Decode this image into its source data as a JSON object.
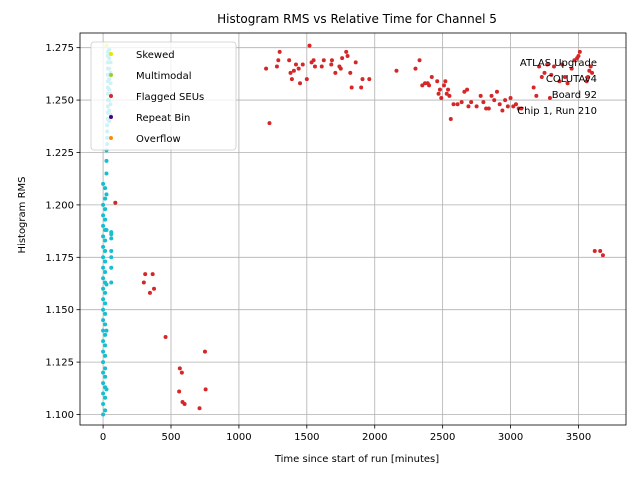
{
  "chart_data": {
    "type": "scatter",
    "title": "Histogram RMS vs Relative Time for Channel 5",
    "xlabel": "Time since start of run [minutes]",
    "ylabel": "Histogram RMS",
    "xlim": [
      -170,
      3850
    ],
    "ylim": [
      1.095,
      1.282
    ],
    "x_ticks": [
      0,
      500,
      1000,
      1500,
      2000,
      2500,
      3000,
      3500
    ],
    "y_ticks": [
      1.1,
      1.125,
      1.15,
      1.175,
      1.2,
      1.225,
      1.25,
      1.275
    ],
    "x_tick_labels": [
      "0",
      "500",
      "1000",
      "1500",
      "2000",
      "2500",
      "3000",
      "3500"
    ],
    "y_tick_labels": [
      "1.100",
      "1.125",
      "1.150",
      "1.175",
      "1.200",
      "1.225",
      "1.250",
      "1.275"
    ],
    "grid": true,
    "legend_position": "upper-left",
    "annotation": [
      "ATLAS Upgrade",
      "COLUTAv4",
      "Board 92",
      "Chip 1, Run 210"
    ],
    "legend": [
      {
        "name": "Skewed",
        "color": "#e6e600"
      },
      {
        "name": "Multimodal",
        "color": "#9acd32"
      },
      {
        "name": "Flagged SEUs",
        "color": "#d62728"
      },
      {
        "name": "Repeat Bin",
        "color": "#4b0082"
      },
      {
        "name": "Overflow",
        "color": "#ff8c00"
      }
    ],
    "series": [
      {
        "name": "Flagged SEUs",
        "color": "#d62728",
        "points": [
          [
            90,
            1.201
          ],
          [
            300,
            1.163
          ],
          [
            310,
            1.167
          ],
          [
            345,
            1.158
          ],
          [
            365,
            1.167
          ],
          [
            375,
            1.16
          ],
          [
            460,
            1.137
          ],
          [
            560,
            1.111
          ],
          [
            565,
            1.122
          ],
          [
            580,
            1.12
          ],
          [
            585,
            1.106
          ],
          [
            600,
            1.105
          ],
          [
            710,
            1.103
          ],
          [
            750,
            1.13
          ],
          [
            755,
            1.112
          ],
          [
            1200,
            1.265
          ],
          [
            1225,
            1.239
          ],
          [
            1280,
            1.266
          ],
          [
            1290,
            1.269
          ],
          [
            1300,
            1.273
          ],
          [
            1370,
            1.269
          ],
          [
            1380,
            1.263
          ],
          [
            1390,
            1.26
          ],
          [
            1405,
            1.264
          ],
          [
            1420,
            1.267
          ],
          [
            1440,
            1.265
          ],
          [
            1450,
            1.258
          ],
          [
            1470,
            1.267
          ],
          [
            1500,
            1.26
          ],
          [
            1520,
            1.276
          ],
          [
            1535,
            1.268
          ],
          [
            1550,
            1.269
          ],
          [
            1560,
            1.266
          ],
          [
            1610,
            1.266
          ],
          [
            1625,
            1.269
          ],
          [
            1680,
            1.267
          ],
          [
            1685,
            1.269
          ],
          [
            1710,
            1.263
          ],
          [
            1740,
            1.266
          ],
          [
            1750,
            1.265
          ],
          [
            1760,
            1.27
          ],
          [
            1790,
            1.273
          ],
          [
            1800,
            1.271
          ],
          [
            1820,
            1.263
          ],
          [
            1830,
            1.256
          ],
          [
            1860,
            1.268
          ],
          [
            1900,
            1.256
          ],
          [
            1910,
            1.26
          ],
          [
            1960,
            1.26
          ],
          [
            2160,
            1.264
          ],
          [
            2300,
            1.265
          ],
          [
            2330,
            1.269
          ],
          [
            2350,
            1.257
          ],
          [
            2370,
            1.258
          ],
          [
            2390,
            1.258
          ],
          [
            2400,
            1.257
          ],
          [
            2420,
            1.261
          ],
          [
            2460,
            1.259
          ],
          [
            2470,
            1.253
          ],
          [
            2480,
            1.255
          ],
          [
            2490,
            1.251
          ],
          [
            2510,
            1.257
          ],
          [
            2520,
            1.259
          ],
          [
            2530,
            1.253
          ],
          [
            2540,
            1.255
          ],
          [
            2550,
            1.252
          ],
          [
            2560,
            1.241
          ],
          [
            2580,
            1.248
          ],
          [
            2610,
            1.248
          ],
          [
            2640,
            1.249
          ],
          [
            2660,
            1.254
          ],
          [
            2680,
            1.255
          ],
          [
            2690,
            1.247
          ],
          [
            2710,
            1.249
          ],
          [
            2750,
            1.247
          ],
          [
            2780,
            1.252
          ],
          [
            2800,
            1.249
          ],
          [
            2820,
            1.246
          ],
          [
            2840,
            1.246
          ],
          [
            2860,
            1.252
          ],
          [
            2880,
            1.25
          ],
          [
            2900,
            1.254
          ],
          [
            2920,
            1.248
          ],
          [
            2940,
            1.245
          ],
          [
            2960,
            1.25
          ],
          [
            2980,
            1.247
          ],
          [
            3000,
            1.251
          ],
          [
            3020,
            1.247
          ],
          [
            3040,
            1.248
          ],
          [
            3060,
            1.246
          ],
          [
            3080,
            1.246
          ],
          [
            3170,
            1.256
          ],
          [
            3190,
            1.252
          ],
          [
            3210,
            1.266
          ],
          [
            3230,
            1.261
          ],
          [
            3250,
            1.263
          ],
          [
            3270,
            1.267
          ],
          [
            3290,
            1.251
          ],
          [
            3300,
            1.262
          ],
          [
            3320,
            1.266
          ],
          [
            3360,
            1.259
          ],
          [
            3380,
            1.267
          ],
          [
            3400,
            1.261
          ],
          [
            3420,
            1.258
          ],
          [
            3450,
            1.265
          ],
          [
            3470,
            1.269
          ],
          [
            3490,
            1.27
          ],
          [
            3500,
            1.271
          ],
          [
            3510,
            1.273
          ],
          [
            3560,
            1.259
          ],
          [
            3570,
            1.261
          ],
          [
            3580,
            1.264
          ],
          [
            3590,
            1.266
          ],
          [
            3600,
            1.263
          ],
          [
            3620,
            1.178
          ],
          [
            3660,
            1.178
          ],
          [
            3680,
            1.176
          ]
        ]
      },
      {
        "name": "",
        "color": "#17becf",
        "points": [
          [
            0,
            1.1
          ],
          [
            0,
            1.105
          ],
          [
            0,
            1.11
          ],
          [
            0,
            1.115
          ],
          [
            0,
            1.12
          ],
          [
            0,
            1.125
          ],
          [
            0,
            1.13
          ],
          [
            0,
            1.135
          ],
          [
            0,
            1.14
          ],
          [
            0,
            1.145
          ],
          [
            0,
            1.15
          ],
          [
            0,
            1.155
          ],
          [
            0,
            1.16
          ],
          [
            0,
            1.165
          ],
          [
            0,
            1.17
          ],
          [
            0,
            1.175
          ],
          [
            0,
            1.18
          ],
          [
            0,
            1.185
          ],
          [
            0,
            1.19
          ],
          [
            0,
            1.195
          ],
          [
            0,
            1.2
          ],
          [
            0,
            1.21
          ],
          [
            15,
            1.102
          ],
          [
            15,
            1.108
          ],
          [
            15,
            1.113
          ],
          [
            15,
            1.118
          ],
          [
            15,
            1.122
          ],
          [
            15,
            1.128
          ],
          [
            15,
            1.133
          ],
          [
            15,
            1.138
          ],
          [
            15,
            1.143
          ],
          [
            15,
            1.148
          ],
          [
            15,
            1.153
          ],
          [
            15,
            1.158
          ],
          [
            15,
            1.163
          ],
          [
            15,
            1.168
          ],
          [
            15,
            1.173
          ],
          [
            15,
            1.178
          ],
          [
            15,
            1.183
          ],
          [
            15,
            1.188
          ],
          [
            15,
            1.193
          ],
          [
            15,
            1.198
          ],
          [
            15,
            1.203
          ],
          [
            15,
            1.208
          ],
          [
            25,
            1.112
          ],
          [
            25,
            1.14
          ],
          [
            25,
            1.162
          ],
          [
            25,
            1.188
          ],
          [
            25,
            1.205
          ],
          [
            25,
            1.215
          ],
          [
            25,
            1.221
          ],
          [
            25,
            1.226
          ],
          [
            30,
            1.229
          ],
          [
            30,
            1.232
          ],
          [
            30,
            1.235
          ],
          [
            30,
            1.238
          ],
          [
            35,
            1.241
          ],
          [
            35,
            1.244
          ],
          [
            35,
            1.247
          ],
          [
            35,
            1.25
          ],
          [
            35,
            1.253
          ],
          [
            35,
            1.256
          ],
          [
            35,
            1.259
          ],
          [
            35,
            1.262
          ],
          [
            35,
            1.265
          ],
          [
            35,
            1.268
          ],
          [
            35,
            1.271
          ],
          [
            35,
            1.273
          ],
          [
            45,
            1.24
          ],
          [
            45,
            1.245
          ],
          [
            45,
            1.25
          ],
          [
            45,
            1.255
          ],
          [
            45,
            1.26
          ],
          [
            45,
            1.265
          ],
          [
            45,
            1.27
          ],
          [
            45,
            1.274
          ],
          [
            55,
            1.243
          ],
          [
            55,
            1.248
          ],
          [
            55,
            1.253
          ],
          [
            55,
            1.258
          ],
          [
            55,
            1.263
          ],
          [
            55,
            1.268
          ],
          [
            55,
            1.272
          ],
          [
            60,
            1.163
          ],
          [
            60,
            1.17
          ],
          [
            60,
            1.175
          ],
          [
            60,
            1.178
          ],
          [
            60,
            1.184
          ],
          [
            60,
            1.186
          ],
          [
            60,
            1.187
          ]
        ]
      },
      {
        "name": "Skewed",
        "color": "#e6e600",
        "points": [
          [
            25,
            1.276
          ]
        ]
      }
    ]
  }
}
